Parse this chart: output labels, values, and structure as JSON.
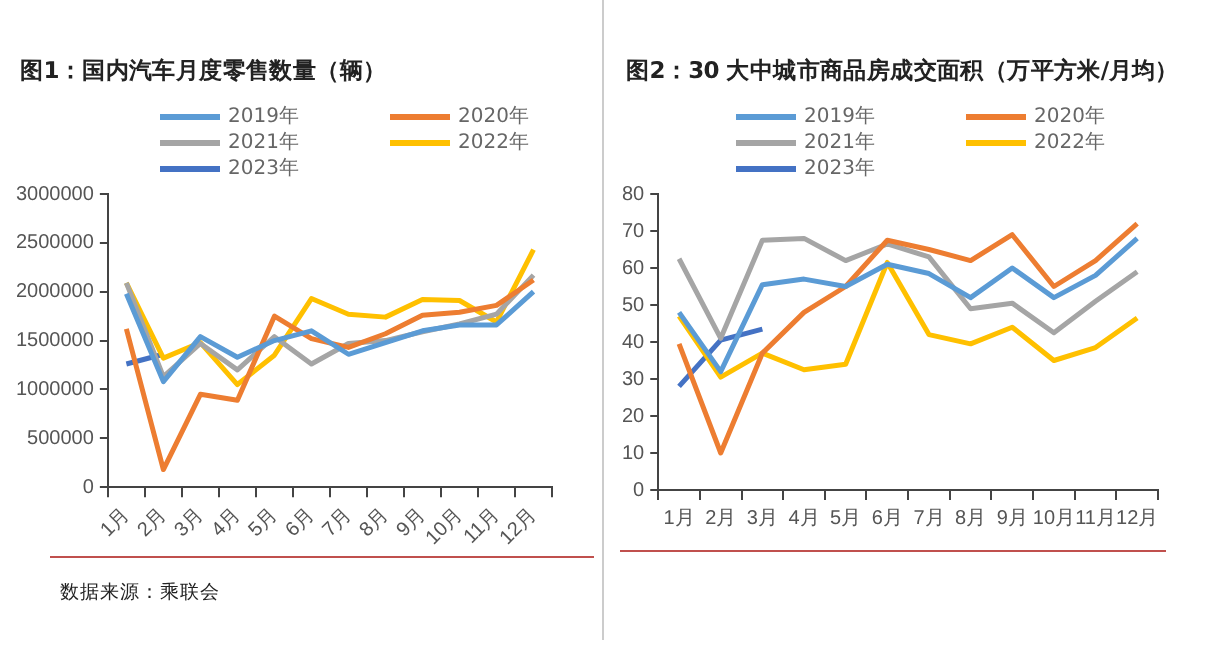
{
  "chart_data": [
    {
      "type": "line",
      "title": "图1：国内汽车月度零售数量（辆）",
      "categories": [
        "1月",
        "2月",
        "3月",
        "4月",
        "5月",
        "6月",
        "7月",
        "8月",
        "9月",
        "10月",
        "11月",
        "12月"
      ],
      "series": [
        {
          "name": "2019年",
          "color": "#5b9bd5",
          "values": [
            1980000,
            1080000,
            1540000,
            1330000,
            1500000,
            1600000,
            1360000,
            1480000,
            1600000,
            1660000,
            1660000,
            2000000
          ]
        },
        {
          "name": "2020年",
          "color": "#ed7d31",
          "values": [
            1620000,
            180000,
            950000,
            890000,
            1750000,
            1520000,
            1430000,
            1570000,
            1760000,
            1790000,
            1860000,
            2120000
          ]
        },
        {
          "name": "2021年",
          "color": "#a5a5a5",
          "values": [
            2090000,
            1130000,
            1470000,
            1200000,
            1540000,
            1260000,
            1470000,
            1500000,
            1590000,
            1670000,
            1770000,
            2170000
          ]
        },
        {
          "name": "2022年",
          "color": "#ffc000",
          "values": [
            2090000,
            1320000,
            1480000,
            1050000,
            1350000,
            1930000,
            1770000,
            1740000,
            1920000,
            1910000,
            1690000,
            2430000
          ]
        },
        {
          "name": "2023年",
          "color": "#4472c4",
          "values": [
            1260000,
            1360000,
            null,
            null,
            null,
            null,
            null,
            null,
            null,
            null,
            null,
            null
          ]
        }
      ],
      "ylim": [
        0,
        3000000
      ],
      "yticks": [
        0,
        500000,
        1000000,
        1500000,
        2000000,
        2500000,
        3000000
      ],
      "grid": false,
      "legend": "top",
      "marker": "none",
      "annotations": [
        "数据来源：乘联会"
      ]
    },
    {
      "type": "line",
      "title": "图2：30 大中城市商品房成交面积（万平方米/月均）",
      "categories": [
        "1月",
        "2月",
        "3月",
        "4月",
        "5月",
        "6月",
        "7月",
        "8月",
        "9月",
        "10月",
        "11月",
        "12月"
      ],
      "series": [
        {
          "name": "2019年",
          "color": "#5b9bd5",
          "values": [
            48,
            32,
            55.5,
            57,
            55,
            61,
            58.5,
            52,
            60,
            52,
            58,
            68
          ]
        },
        {
          "name": "2020年",
          "color": "#ed7d31",
          "values": [
            39.5,
            10,
            37,
            48,
            55,
            67.5,
            65,
            62,
            69,
            55,
            62,
            72
          ]
        },
        {
          "name": "2021年",
          "color": "#a5a5a5",
          "values": [
            62.5,
            41,
            67.5,
            68,
            62,
            66.5,
            63,
            49,
            50.5,
            42.5,
            51,
            59
          ]
        },
        {
          "name": "2022年",
          "color": "#ffc000",
          "values": [
            47,
            30.5,
            37,
            32.5,
            34,
            61.5,
            42,
            39.5,
            44,
            35,
            38.5,
            46.5
          ]
        },
        {
          "name": "2023年",
          "color": "#4472c4",
          "values": [
            28,
            40.5,
            43.5,
            null,
            null,
            null,
            null,
            null,
            null,
            null,
            null,
            null
          ]
        }
      ],
      "ylim": [
        0,
        80
      ],
      "yticks": [
        0,
        10,
        20,
        30,
        40,
        50,
        60,
        70,
        80
      ],
      "grid": false,
      "legend": "top",
      "marker": "none"
    }
  ]
}
